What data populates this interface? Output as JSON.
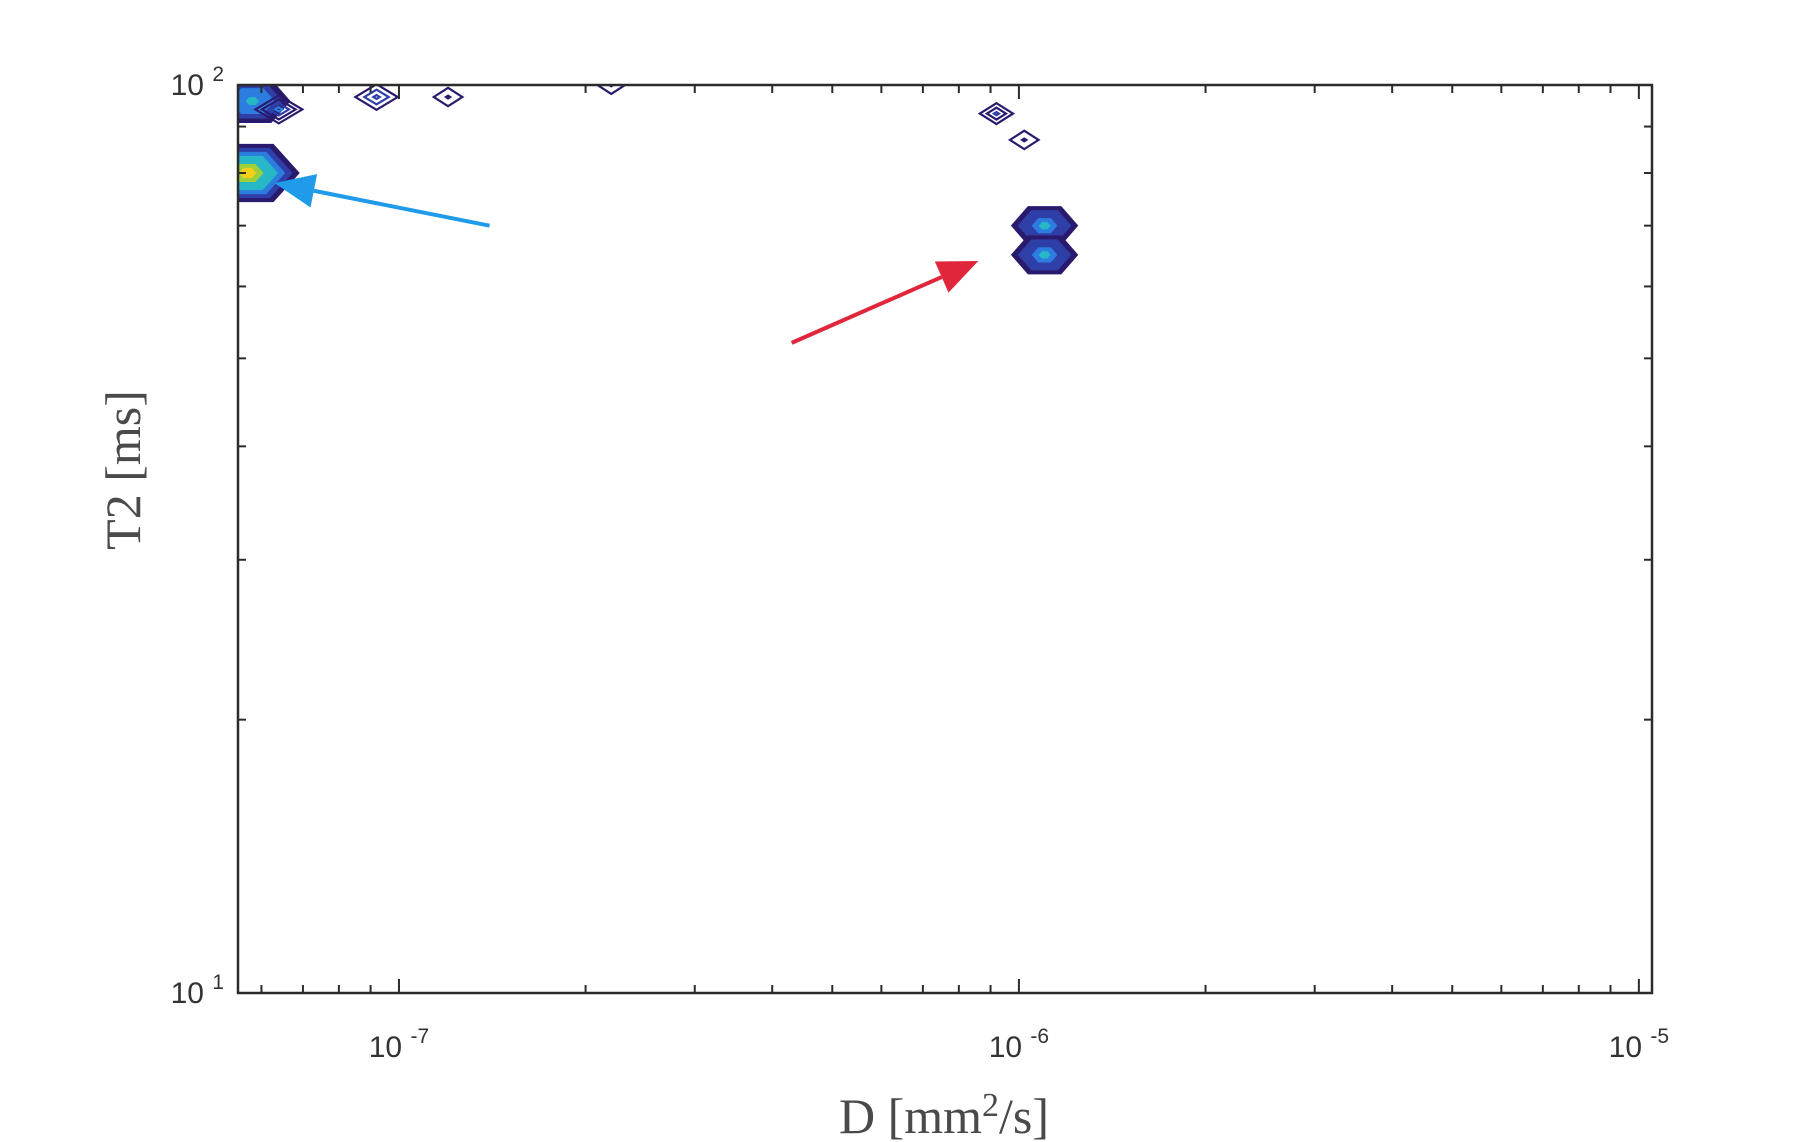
{
  "chart_data": {
    "type": "contour",
    "title": "",
    "xlabel": "D [mm²/s]",
    "xlabel_parts": {
      "pre": "D [mm",
      "sup": "2",
      "post": "/s]"
    },
    "ylabel": "T2 [ms]",
    "xscale": "log",
    "yscale": "log",
    "xlim": [
      5.5e-08,
      1.05e-05
    ],
    "ylim": [
      10,
      100
    ],
    "grid": false,
    "legend": "none",
    "x_ticks": [
      {
        "value": 1e-07,
        "base": "10",
        "exp": "-7"
      },
      {
        "value": 1e-06,
        "base": "10",
        "exp": "-6"
      },
      {
        "value": 1e-05,
        "base": "10",
        "exp": "-5"
      }
    ],
    "y_ticks": [
      {
        "value": 10,
        "base": "10",
        "exp": "1"
      },
      {
        "value": 100,
        "base": "10",
        "exp": "2"
      }
    ],
    "peaks": [
      {
        "label": "peak-1",
        "x": 5.8e-08,
        "y": 96,
        "peak_level": 0.55
      },
      {
        "label": "peak-2",
        "x": 6.4e-08,
        "y": 94,
        "peak_level": 0.25
      },
      {
        "label": "peak-3",
        "x": 9.2e-08,
        "y": 97,
        "peak_level": 0.2
      },
      {
        "label": "peak-4",
        "x": 1.2e-07,
        "y": 97,
        "peak_level": 0.05
      },
      {
        "label": "peak-5",
        "x": 5.7e-08,
        "y": 80,
        "peak_level": 0.85
      },
      {
        "label": "peak-6",
        "x": 2.2e-07,
        "y": 100,
        "peak_level": 0.04
      },
      {
        "label": "peak-7",
        "x": 9.2e-07,
        "y": 93,
        "peak_level": 0.1
      },
      {
        "label": "peak-8",
        "x": 1.02e-06,
        "y": 87,
        "peak_level": 0.05
      },
      {
        "label": "peak-9",
        "x": 1.1e-06,
        "y": 70,
        "peak_level": 0.45
      },
      {
        "label": "peak-10",
        "x": 1.1e-06,
        "y": 65,
        "peak_level": 0.45
      }
    ],
    "annotations": [
      {
        "name": "blue-arrow",
        "color": "#1f9bea",
        "from": [
          1.4e-07,
          70
        ],
        "to": [
          6.3e-08,
          78
        ]
      },
      {
        "name": "red-arrow",
        "color": "#e0263a",
        "from": [
          4.3e-07,
          52
        ],
        "to": [
          8.6e-07,
          64
        ]
      }
    ],
    "colormap": [
      "#2a1a6e",
      "#2f3fa8",
      "#2c7ddf",
      "#27b8c8",
      "#9fd03a",
      "#f4d01a"
    ]
  }
}
